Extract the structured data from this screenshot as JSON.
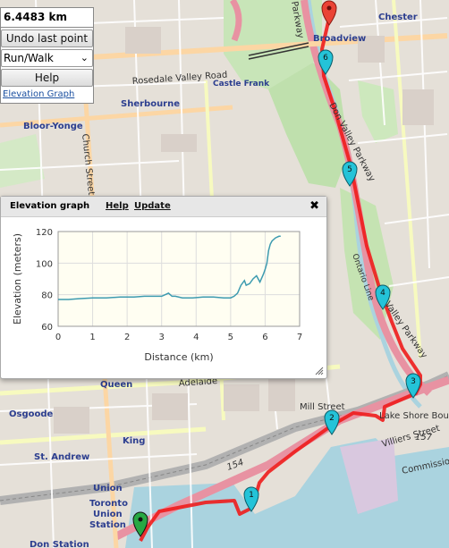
{
  "controls": {
    "distance": "6.4483 km",
    "undo_label": "Undo last point",
    "mode_value": "Run/Walk",
    "help_label": "Help",
    "elevation_link": "Elevation Graph"
  },
  "popup": {
    "title": "Elevation graph",
    "help_link": "Help",
    "update_link": "Update",
    "close_icon": "close-icon"
  },
  "map_labels": {
    "chester": "Chester",
    "broadview": "Broadview",
    "parkway": "Parkway",
    "rosedale": "Rosedale Valley Road",
    "castle_frank": "Castle Frank",
    "sherbourne": "Sherbourne",
    "bloor_yonge": "Bloor-Yonge",
    "church": "Church Street",
    "dvp": "Don Valley Parkway",
    "ontario_line": "Ontario Line",
    "valley_parkway": "Valley Parkway",
    "queen": "Queen",
    "osgoode": "Osgoode",
    "king": "King",
    "st_andrew": "St. Andrew",
    "union": "Union",
    "toronto_union": "Toronto Union Station",
    "don_station": "Don Station",
    "adelaide": "Adelaide",
    "mill_street": "Mill Street",
    "lake_shore": "Lake Shore Boulev",
    "villiers": "Villiers Street",
    "commissioner": "Commissione",
    "route_154": "154",
    "route_157": "157"
  },
  "markers": [
    "1",
    "2",
    "3",
    "4",
    "5",
    "6"
  ],
  "chart_data": {
    "type": "line",
    "xlabel": "Distance (km)",
    "ylabel": "Elevation (meters)",
    "xlim": [
      0,
      7
    ],
    "ylim": [
      60,
      120
    ],
    "xticks": [
      0,
      1,
      2,
      3,
      4,
      5,
      6,
      7
    ],
    "yticks": [
      60,
      80,
      100,
      120
    ],
    "series": [
      {
        "x": [
          0,
          0.3,
          0.6,
          1.0,
          1.4,
          1.8,
          2.2,
          2.5,
          2.8,
          3.0,
          3.1,
          3.2,
          3.3,
          3.4,
          3.6,
          3.9,
          4.2,
          4.5,
          4.8,
          5.0,
          5.1,
          5.2,
          5.3,
          5.4,
          5.45,
          5.55,
          5.65,
          5.75,
          5.85,
          5.95,
          6.0,
          6.05,
          6.1,
          6.15,
          6.2,
          6.3,
          6.4,
          6.45
        ],
        "y": [
          77,
          77,
          77.5,
          78,
          78,
          78.5,
          78.5,
          79,
          79,
          79,
          80,
          81,
          79,
          79,
          78,
          78,
          78.5,
          78.5,
          78,
          78,
          79,
          81,
          86,
          89,
          86,
          87,
          90,
          92,
          88,
          93,
          96,
          100,
          108,
          112,
          114,
          116,
          117,
          117
        ]
      }
    ]
  }
}
